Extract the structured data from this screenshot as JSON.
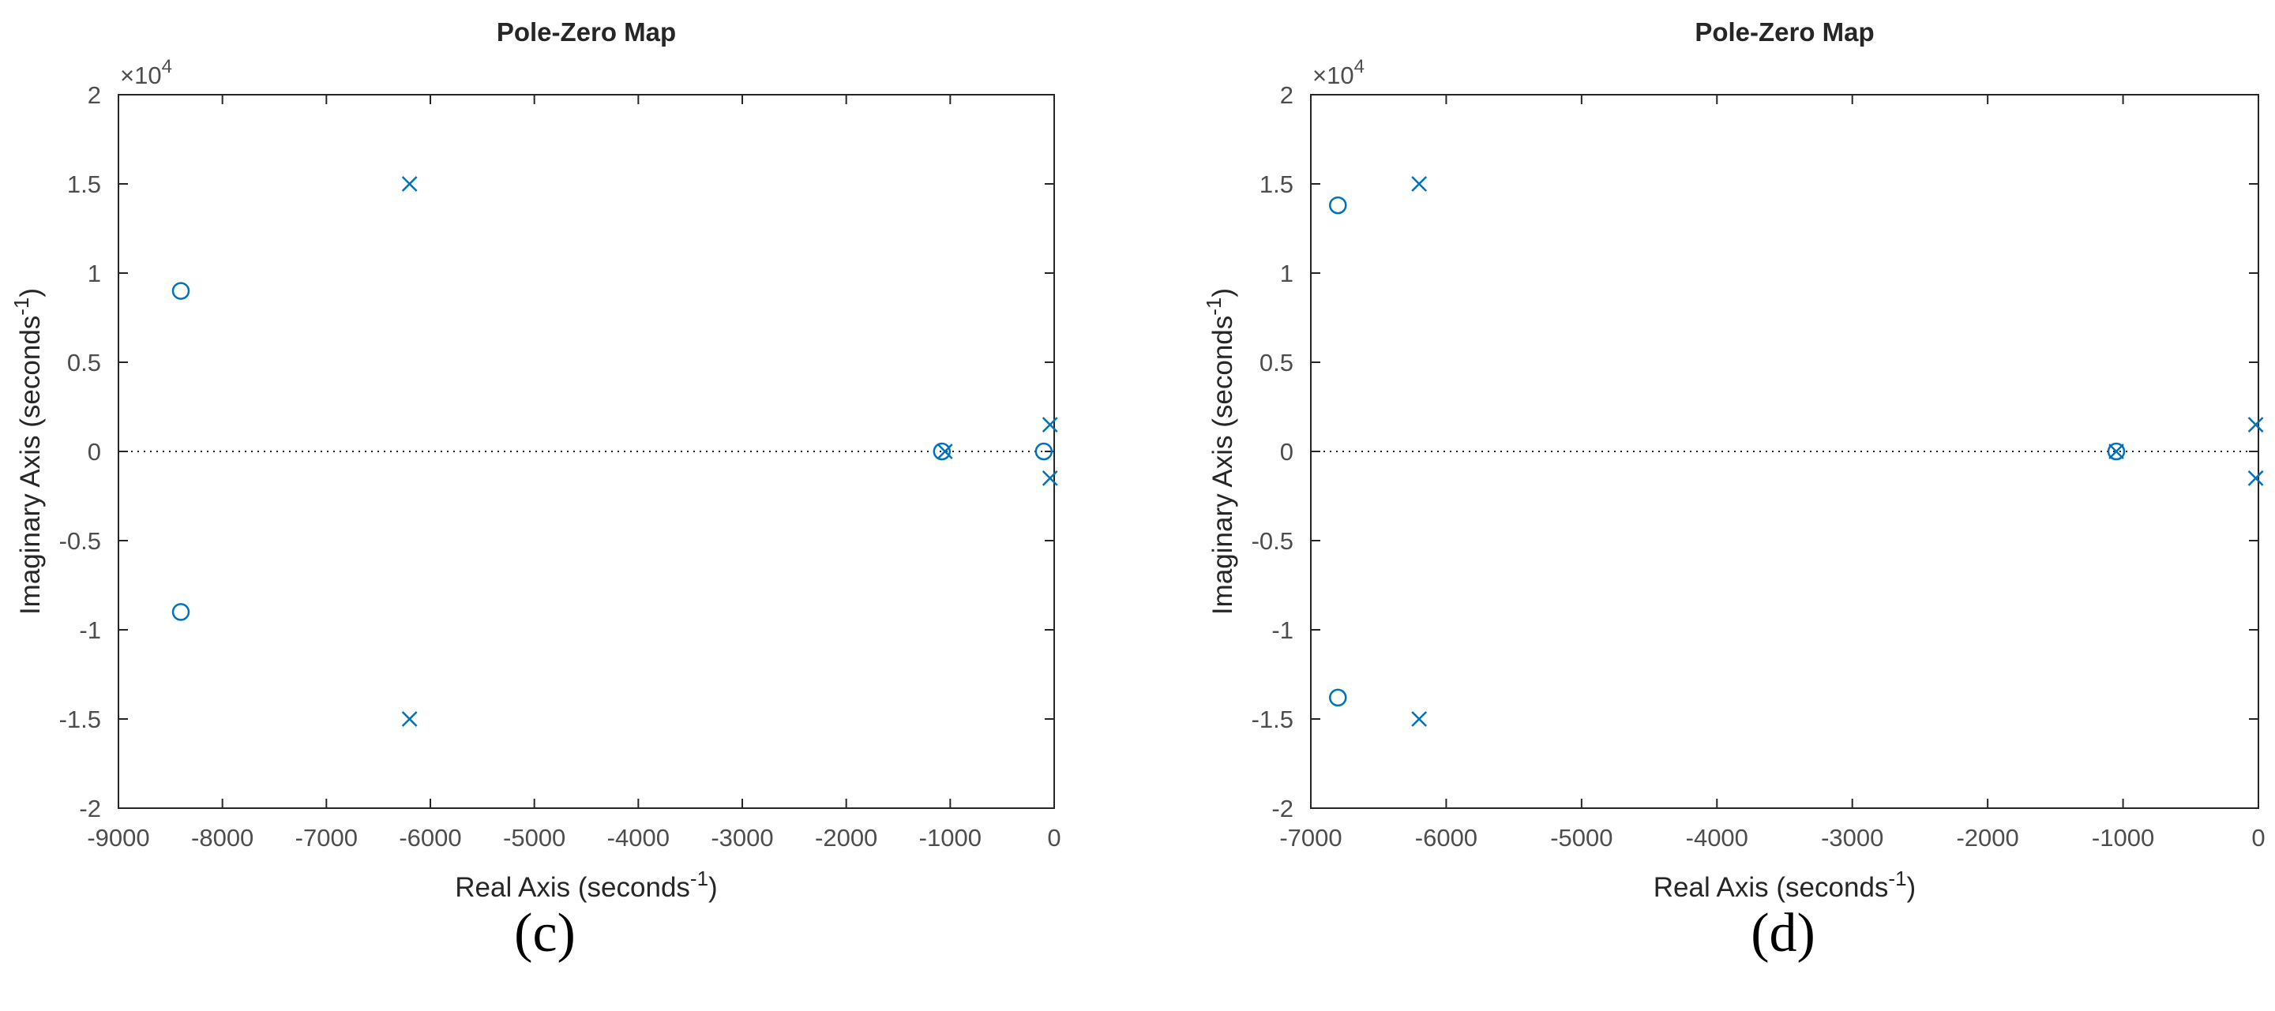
{
  "colors": {
    "marker": "#0072bd",
    "axis": "#262626",
    "tick_text": "#4d4d4d",
    "zero_line": "#262626"
  },
  "chart_data": [
    {
      "type": "scatter",
      "panel": "(c)",
      "title": "Pole-Zero Map",
      "xlabel": "Real Axis (seconds",
      "xlabel_sup": "-1",
      "xlabel_end": ")",
      "ylabel": "Imaginary Axis (seconds",
      "ylabel_sup": "-1",
      "ylabel_end": ")",
      "y_exponent_base": "×10",
      "y_exponent_power": "4",
      "xlim": [
        -9000,
        0
      ],
      "ylim": [
        -2,
        2
      ],
      "y_scale_factor": 10000,
      "x_ticks": [
        -9000,
        -8000,
        -7000,
        -6000,
        -5000,
        -4000,
        -3000,
        -2000,
        -1000,
        0
      ],
      "x_tick_labels": [
        "-9000",
        "-8000",
        "-7000",
        "-6000",
        "-5000",
        "-4000",
        "-3000",
        "-2000",
        "-1000",
        "0"
      ],
      "y_ticks": [
        -2,
        -1.5,
        -1,
        -0.5,
        0,
        0.5,
        1,
        1.5,
        2
      ],
      "y_tick_labels": [
        "-2",
        "-1.5",
        "-1",
        "-0.5",
        "0",
        "0.5",
        "1",
        "1.5",
        "2"
      ],
      "zero_line": true,
      "series": [
        {
          "name": "poles",
          "marker": "x",
          "points": [
            {
              "x": -6200,
              "y": 1.5
            },
            {
              "x": -6200,
              "y": -1.5
            },
            {
              "x": -1050,
              "y": 0
            },
            {
              "x": -40,
              "y": 0.15
            },
            {
              "x": -40,
              "y": -0.15
            }
          ]
        },
        {
          "name": "zeros",
          "marker": "o",
          "points": [
            {
              "x": -8400,
              "y": 0.9
            },
            {
              "x": -8400,
              "y": -0.9
            },
            {
              "x": -1080,
              "y": 0
            },
            {
              "x": -100,
              "y": 0
            }
          ]
        }
      ]
    },
    {
      "type": "scatter",
      "panel": "(d)",
      "title": "Pole-Zero Map",
      "xlabel": "Real Axis (seconds",
      "xlabel_sup": "-1",
      "xlabel_end": ")",
      "ylabel": "Imaginary Axis (seconds",
      "ylabel_sup": "-1",
      "ylabel_end": ")",
      "y_exponent_base": "×10",
      "y_exponent_power": "4",
      "xlim": [
        -7000,
        0
      ],
      "ylim": [
        -2,
        2
      ],
      "y_scale_factor": 10000,
      "x_ticks": [
        -7000,
        -6000,
        -5000,
        -4000,
        -3000,
        -2000,
        -1000,
        0
      ],
      "x_tick_labels": [
        "-7000",
        "-6000",
        "-5000",
        "-4000",
        "-3000",
        "-2000",
        "-1000",
        "0"
      ],
      "y_ticks": [
        -2,
        -1.5,
        -1,
        -0.5,
        0,
        0.5,
        1,
        1.5,
        2
      ],
      "y_tick_labels": [
        "-2",
        "-1.5",
        "-1",
        "-0.5",
        "0",
        "0.5",
        "1",
        "1.5",
        "2"
      ],
      "zero_line": true,
      "series": [
        {
          "name": "poles",
          "marker": "x",
          "points": [
            {
              "x": -6200,
              "y": 1.5
            },
            {
              "x": -6200,
              "y": -1.5
            },
            {
              "x": -1050,
              "y": 0
            },
            {
              "x": -20,
              "y": 0.15
            },
            {
              "x": -20,
              "y": -0.15
            }
          ]
        },
        {
          "name": "zeros",
          "marker": "o",
          "points": [
            {
              "x": -6800,
              "y": 1.38
            },
            {
              "x": -6800,
              "y": -1.38
            },
            {
              "x": -1050,
              "y": 0
            }
          ]
        }
      ]
    }
  ]
}
